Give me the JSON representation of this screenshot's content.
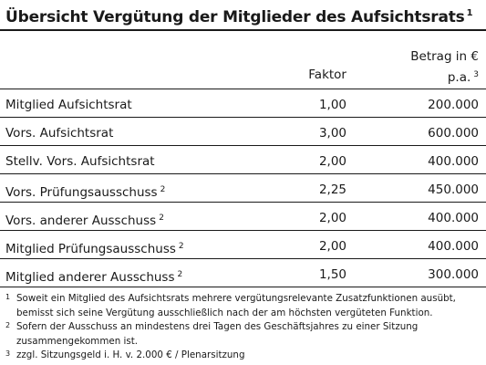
{
  "title": {
    "text": "Übersicht Vergütung der Mitglieder des Aufsichtsrats",
    "footnote": "1"
  },
  "header": {
    "factor": "Faktor",
    "amount_line1": "Betrag in €",
    "amount_line2": "p.a.",
    "amount_footnote": "3"
  },
  "rows": [
    {
      "label": "Mitglied Aufsichtsrat",
      "footnote": "",
      "factor": "1,00",
      "amount": "200.000"
    },
    {
      "label": "Vors. Aufsichtsrat",
      "footnote": "",
      "factor": "3,00",
      "amount": "600.000"
    },
    {
      "label": "Stellv. Vors. Aufsichtsrat",
      "footnote": "",
      "factor": "2,00",
      "amount": "400.000"
    },
    {
      "label": "Vors. Prüfungsausschuss",
      "footnote": "2",
      "factor": "2,25",
      "amount": "450.000"
    },
    {
      "label": "Vors. anderer Ausschuss",
      "footnote": "2",
      "factor": "2,00",
      "amount": "400.000"
    },
    {
      "label": "Mitglied Prüfungsausschuss",
      "footnote": "2",
      "factor": "2,00",
      "amount": "400.000"
    },
    {
      "label": "Mitglied anderer Ausschuss",
      "footnote": "2",
      "factor": "1,50",
      "amount": "300.000"
    }
  ],
  "footnotes": [
    {
      "mark": "1",
      "text": "Soweit ein Mitglied des Aufsichtsrats mehrere vergütungsrelevante Zusatzfunktionen ausübt, bemisst sich seine Vergütung ausschließlich nach der am höchsten vergüteten Funktion."
    },
    {
      "mark": "2",
      "text": "Sofern der Ausschuss an mindestens drei Tagen des Geschäftsjahres zu einer Sitzung zusammengekommen ist."
    },
    {
      "mark": "3",
      "text": "zzgl. Sitzungsgeld i. H. v. 2.000 € / Plenarsitzung"
    }
  ]
}
